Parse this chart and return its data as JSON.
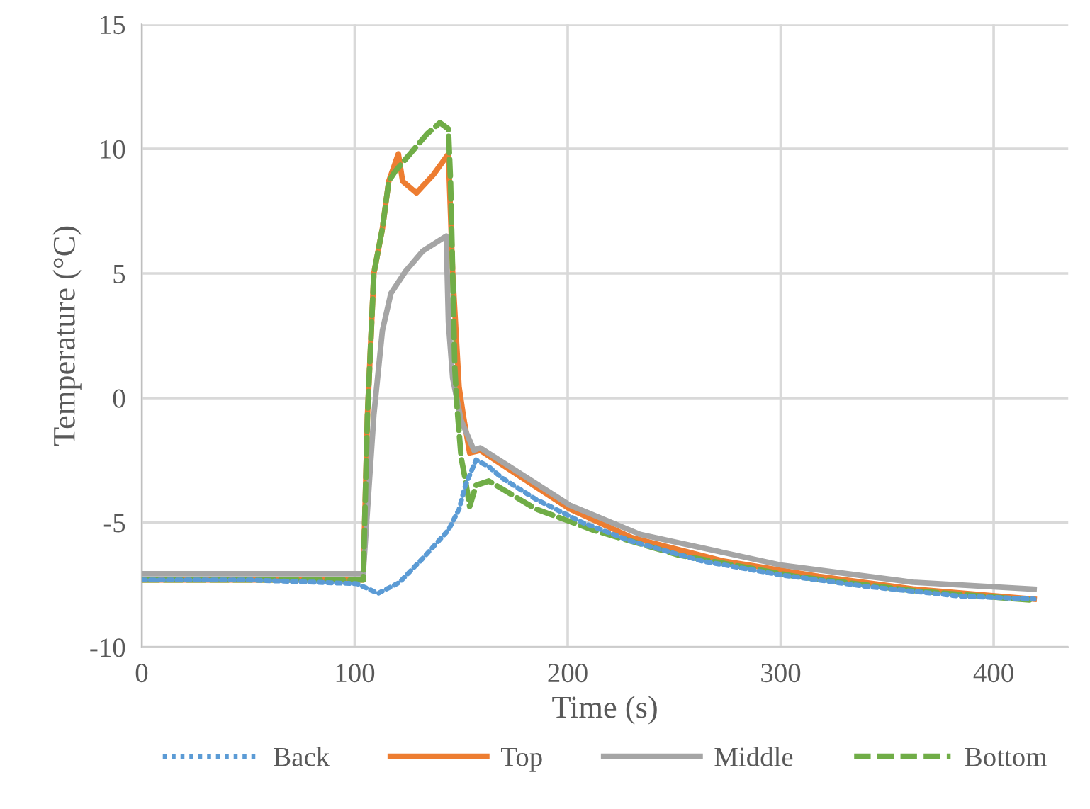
{
  "chart_data": {
    "type": "line",
    "xlabel": "Time (s)",
    "ylabel": "Temperature (°C)",
    "xlim": [
      0,
      435
    ],
    "xticks": [
      0,
      100,
      200,
      300,
      400
    ],
    "ylim": [
      -10,
      15
    ],
    "yticks": [
      -10,
      -5,
      0,
      5,
      10,
      15
    ],
    "grid": true,
    "legend": "bottom",
    "marker": "none",
    "series": [
      {
        "name": "Back",
        "color": "#5b9bd5",
        "line_style": "dotted",
        "x": [
          0,
          50,
          101,
          111,
          121,
          132,
          144,
          149,
          152,
          157,
          163,
          169,
          185,
          207,
          230,
          263,
          300,
          340,
          384,
          419
        ],
        "values": [
          -7.3,
          -7.3,
          -7.45,
          -7.84,
          -7.4,
          -6.43,
          -5.3,
          -4.46,
          -3.5,
          -2.48,
          -2.76,
          -3.2,
          -4.06,
          -5.0,
          -5.75,
          -6.54,
          -7.1,
          -7.56,
          -7.95,
          -8.07
        ]
      },
      {
        "name": "Top",
        "color": "#ed7d31",
        "line_style": "solid",
        "x": [
          0,
          50,
          104,
          106,
          109,
          113,
          116,
          120.5,
          122.5,
          129,
          137,
          144,
          146,
          149,
          151,
          154,
          159,
          174,
          201,
          230,
          273,
          318,
          362,
          419
        ],
        "values": [
          -7.3,
          -7.3,
          -7.3,
          -0.68,
          5.0,
          6.8,
          8.7,
          9.8,
          8.7,
          8.23,
          8.97,
          9.8,
          5.0,
          0.45,
          -0.7,
          -2.2,
          -2.1,
          -2.95,
          -4.45,
          -5.6,
          -6.54,
          -7.16,
          -7.66,
          -8.07
        ]
      },
      {
        "name": "Middle",
        "color": "#a5a5a5",
        "line_style": "solid",
        "x": [
          0,
          50,
          104,
          109,
          113,
          117,
          124,
          132,
          143,
          144,
          146,
          150,
          156,
          159,
          201,
          234,
          300,
          362,
          419
        ],
        "values": [
          -7.05,
          -7.05,
          -7.05,
          -0.68,
          2.7,
          4.2,
          5.1,
          5.9,
          6.5,
          3.05,
          0.8,
          -0.9,
          -2.1,
          -2.0,
          -4.3,
          -5.47,
          -6.7,
          -7.39,
          -7.67
        ]
      },
      {
        "name": "Bottom",
        "color": "#70ad47",
        "line_style": "dashed",
        "x": [
          0,
          50,
          104,
          106,
          109,
          113,
          116,
          119,
          126,
          134,
          140,
          144,
          145,
          146,
          147,
          148,
          150,
          152,
          154,
          157,
          163,
          185,
          212,
          252,
          307,
          362,
          419
        ],
        "values": [
          -7.3,
          -7.3,
          -7.3,
          -0.68,
          5.0,
          6.8,
          8.7,
          9.1,
          9.8,
          10.6,
          11.05,
          10.8,
          8.7,
          5.0,
          1.2,
          -0.3,
          -2.4,
          -3.3,
          -4.35,
          -3.5,
          -3.33,
          -4.45,
          -5.3,
          -6.3,
          -7.16,
          -7.73,
          -8.12
        ]
      }
    ]
  }
}
